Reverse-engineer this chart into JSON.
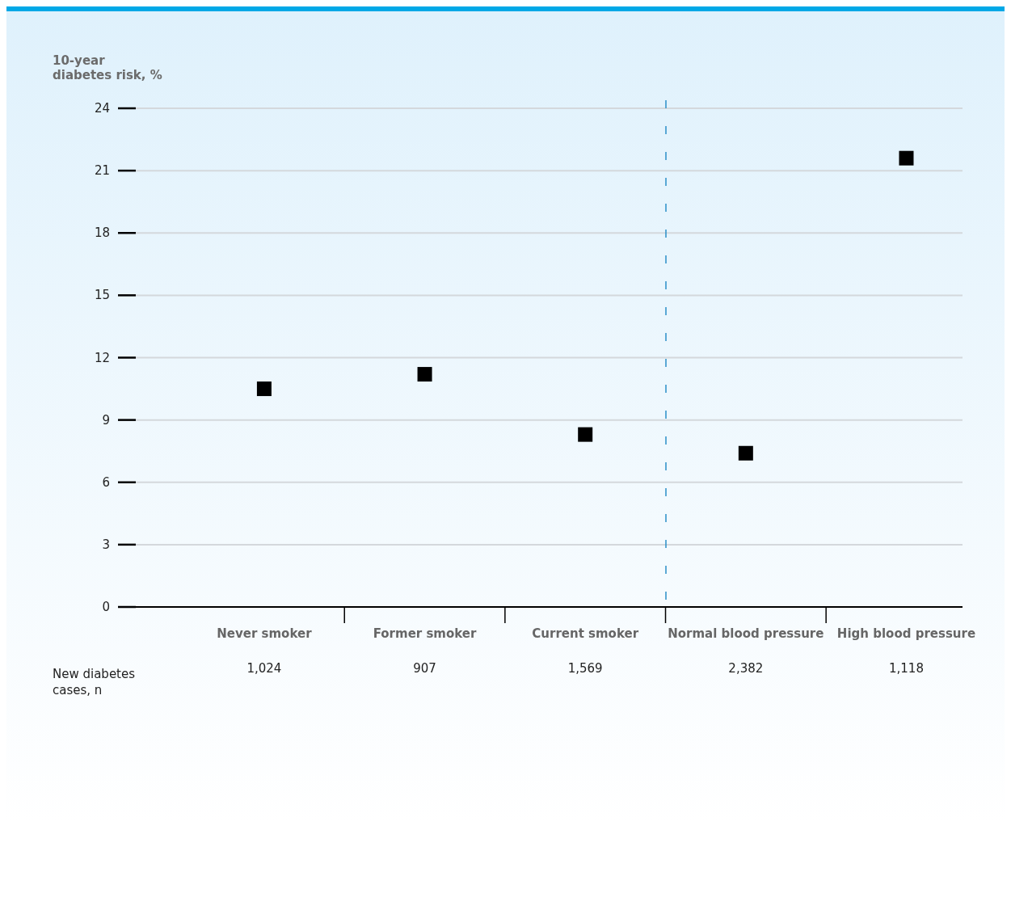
{
  "chart_data": {
    "type": "scatter",
    "ylabel": "10-year\ndiabetes risk, %",
    "categories": [
      "Never smoker",
      "Former smoker",
      "Current smoker",
      "Normal blood pressure",
      "High blood pressure"
    ],
    "series": [
      {
        "color": "#000000",
        "values": [
          10.5,
          11.2,
          8.3,
          7.4,
          21.6
        ]
      }
    ],
    "marker": "square",
    "ylim": [
      0,
      24
    ],
    "yticks": [
      0,
      3,
      6,
      9,
      12,
      15,
      18,
      21,
      24
    ],
    "grid": "y",
    "legend": false,
    "annotations": [
      "New diabetes\ncases, n",
      "1,024",
      "907",
      "1,569",
      "2,382",
      "1,118"
    ]
  }
}
